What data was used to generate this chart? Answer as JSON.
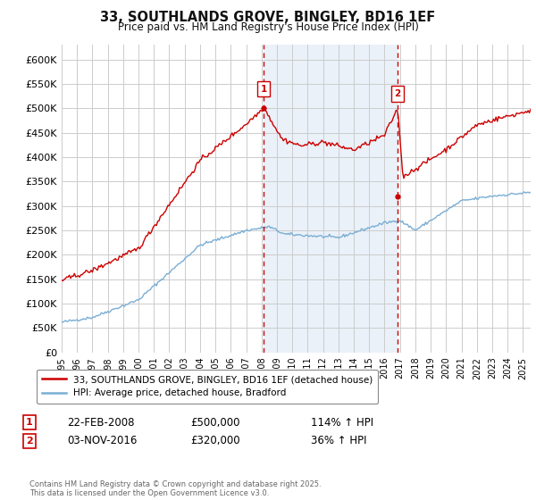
{
  "title": "33, SOUTHLANDS GROVE, BINGLEY, BD16 1EF",
  "subtitle": "Price paid vs. HM Land Registry's House Price Index (HPI)",
  "ylabel_ticks": [
    "£0",
    "£50K",
    "£100K",
    "£150K",
    "£200K",
    "£250K",
    "£300K",
    "£350K",
    "£400K",
    "£450K",
    "£500K",
    "£550K",
    "£600K"
  ],
  "ylim": [
    0,
    630000
  ],
  "ytick_vals": [
    0,
    50000,
    100000,
    150000,
    200000,
    250000,
    300000,
    350000,
    400000,
    450000,
    500000,
    550000,
    600000
  ],
  "x_start_year": 1995,
  "x_end_year": 2025,
  "purchase1": {
    "date": "22-FEB-2008",
    "price": 500000,
    "label": "1",
    "hpi_pct": "114% ↑ HPI"
  },
  "purchase2": {
    "date": "03-NOV-2016",
    "price": 320000,
    "label": "2",
    "hpi_pct": "36% ↑ HPI"
  },
  "legend_red": "33, SOUTHLANDS GROVE, BINGLEY, BD16 1EF (detached house)",
  "legend_blue": "HPI: Average price, detached house, Bradford",
  "footer": "Contains HM Land Registry data © Crown copyright and database right 2025.\nThis data is licensed under the Open Government Licence v3.0.",
  "red_color": "#cc0000",
  "blue_color": "#7aaed4",
  "dashed_color": "#cc0000",
  "bg_shade_color": "#dce9f5",
  "grid_color": "#cccccc",
  "box_color": "#cc0000",
  "p1_year": 2008.14,
  "p2_year": 2016.84,
  "p1_price": 500000,
  "p2_price": 320000
}
